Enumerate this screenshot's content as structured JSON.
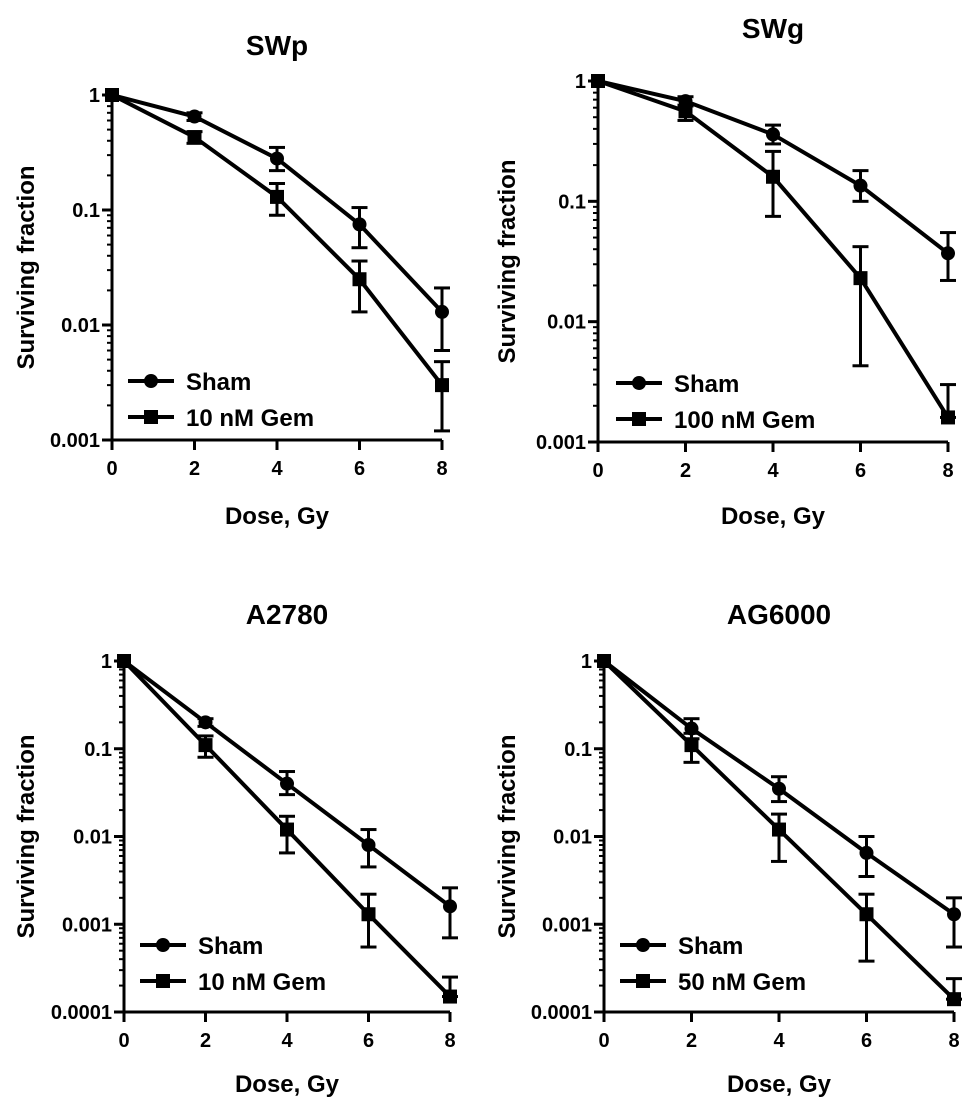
{
  "chart_data": [
    {
      "type": "line",
      "title": "SWp",
      "xlabel": "Dose, Gy",
      "ylabel": "Surviving fraction",
      "yscale": "log",
      "xlim": [
        0,
        8
      ],
      "ylim": [
        0.001,
        1
      ],
      "xticks": [
        "0",
        "2",
        "4",
        "6",
        "8"
      ],
      "yticks": [
        "0.001",
        "0.01",
        "0.1",
        "1"
      ],
      "legend_position": "bottom-left",
      "series": [
        {
          "name": "Sham",
          "marker": "circle",
          "x": [
            0,
            2,
            4,
            6,
            8
          ],
          "y": [
            1,
            0.65,
            0.28,
            0.075,
            0.013
          ],
          "err_hi": [
            1,
            0.7,
            0.35,
            0.105,
            0.021
          ],
          "err_lo": [
            1,
            0.6,
            0.22,
            0.047,
            0.006
          ]
        },
        {
          "name": "10 nM Gem",
          "marker": "square",
          "x": [
            0,
            2,
            4,
            6,
            8
          ],
          "y": [
            1,
            0.43,
            0.13,
            0.025,
            0.003
          ],
          "err_hi": [
            1,
            0.48,
            0.17,
            0.036,
            0.0048
          ],
          "err_lo": [
            1,
            0.38,
            0.09,
            0.013,
            0.0012
          ]
        }
      ]
    },
    {
      "type": "line",
      "title": "SWg",
      "xlabel": "Dose, Gy",
      "ylabel": "Surviving fraction",
      "yscale": "log",
      "xlim": [
        0,
        8
      ],
      "ylim": [
        0.001,
        1
      ],
      "xticks": [
        "0",
        "2",
        "4",
        "6",
        "8"
      ],
      "yticks": [
        "0.001",
        "0.01",
        "0.1",
        "1"
      ],
      "legend_position": "bottom-left",
      "series": [
        {
          "name": "Sham",
          "marker": "circle",
          "x": [
            0,
            2,
            4,
            6,
            8
          ],
          "y": [
            1,
            0.68,
            0.36,
            0.135,
            0.037
          ],
          "err_hi": [
            1,
            0.74,
            0.43,
            0.18,
            0.055
          ],
          "err_lo": [
            1,
            0.62,
            0.3,
            0.1,
            0.022
          ]
        },
        {
          "name": "100 nM Gem",
          "marker": "square",
          "x": [
            0,
            2,
            4,
            6,
            8
          ],
          "y": [
            1,
            0.56,
            0.16,
            0.023,
            0.0016
          ],
          "err_hi": [
            1,
            0.63,
            0.26,
            0.042,
            0.003
          ],
          "err_lo": [
            1,
            0.47,
            0.075,
            0.0043,
            0.0016
          ]
        }
      ]
    },
    {
      "type": "line",
      "title": "A2780",
      "xlabel": "Dose, Gy",
      "ylabel": "Surviving fraction",
      "yscale": "log",
      "xlim": [
        0,
        8
      ],
      "ylim": [
        0.0001,
        1
      ],
      "xticks": [
        "0",
        "2",
        "4",
        "6",
        "8"
      ],
      "yticks": [
        "0.0001",
        "0.001",
        "0.01",
        "0.1",
        "1"
      ],
      "legend_position": "bottom-left",
      "series": [
        {
          "name": "Sham",
          "marker": "circle",
          "x": [
            0,
            2,
            4,
            6,
            8
          ],
          "y": [
            1,
            0.2,
            0.04,
            0.008,
            0.0016
          ],
          "err_hi": [
            1,
            0.22,
            0.055,
            0.012,
            0.0026
          ],
          "err_lo": [
            1,
            0.18,
            0.03,
            0.0045,
            0.0007
          ]
        },
        {
          "name": "10 nM Gem",
          "marker": "square",
          "x": [
            0,
            2,
            4,
            6,
            8
          ],
          "y": [
            1,
            0.11,
            0.012,
            0.0013,
            0.00015
          ],
          "err_hi": [
            1,
            0.14,
            0.017,
            0.0022,
            0.00025
          ],
          "err_lo": [
            1,
            0.08,
            0.0065,
            0.00055,
            0.00015
          ]
        }
      ]
    },
    {
      "type": "line",
      "title": "AG6000",
      "xlabel": "Dose, Gy",
      "ylabel": "Surviving fraction",
      "yscale": "log",
      "xlim": [
        0,
        8
      ],
      "ylim": [
        0.0001,
        1
      ],
      "xticks": [
        "0",
        "2",
        "4",
        "6",
        "8"
      ],
      "yticks": [
        "0.0001",
        "0.001",
        "0.01",
        "0.1",
        "1"
      ],
      "legend_position": "bottom-left",
      "series": [
        {
          "name": "Sham",
          "marker": "circle",
          "x": [
            0,
            2,
            4,
            6,
            8
          ],
          "y": [
            1,
            0.17,
            0.035,
            0.0065,
            0.0013
          ],
          "err_hi": [
            1,
            0.22,
            0.048,
            0.01,
            0.002
          ],
          "err_lo": [
            1,
            0.13,
            0.025,
            0.0035,
            0.00055
          ]
        },
        {
          "name": "50 nM Gem",
          "marker": "square",
          "x": [
            0,
            2,
            4,
            6,
            8
          ],
          "y": [
            1,
            0.11,
            0.012,
            0.0013,
            0.00014
          ],
          "err_hi": [
            1,
            0.15,
            0.018,
            0.0022,
            0.00024
          ],
          "err_lo": [
            1,
            0.07,
            0.0052,
            0.00038,
            0.00014
          ]
        }
      ]
    }
  ]
}
